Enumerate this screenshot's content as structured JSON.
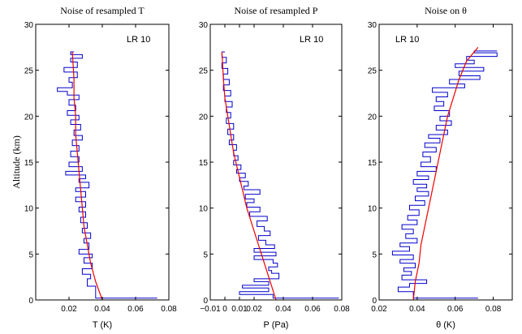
{
  "figure": {
    "y_axis_label": "Altitude (km)"
  },
  "chart_data": [
    {
      "type": "line",
      "title": "Noise of resampled T",
      "xlabel": "T (K)",
      "ylabel": "Altitude (km)",
      "annotation": "LR 10",
      "xlim": [
        0,
        0.08
      ],
      "ylim": [
        0,
        30
      ],
      "xticks": [
        0.02,
        0.04,
        0.06,
        0.08
      ],
      "xtick_labels": [
        "0.02",
        "0.04",
        "0.06",
        "0.08"
      ],
      "yticks": [
        0,
        5,
        10,
        15,
        20,
        25,
        30
      ],
      "ytick_labels": [
        "0",
        "5",
        "10",
        "15",
        "20",
        "25",
        "30"
      ],
      "series": [
        {
          "color": "#0000cc",
          "style": "step",
          "values": [
            [
              0.073,
              0.2
            ],
            [
              0.036,
              0.2
            ],
            [
              0.036,
              0.8
            ],
            [
              0.036,
              1.2
            ],
            [
              0.031,
              1.5
            ],
            [
              0.031,
              1.9
            ],
            [
              0.033,
              2.3
            ],
            [
              0.028,
              2.8
            ],
            [
              0.034,
              3.4
            ],
            [
              0.029,
              4.0
            ],
            [
              0.034,
              4.6
            ],
            [
              0.026,
              5.0
            ],
            [
              0.032,
              5.5
            ],
            [
              0.029,
              6.2
            ],
            [
              0.033,
              6.7
            ],
            [
              0.028,
              7.3
            ],
            [
              0.031,
              7.8
            ],
            [
              0.027,
              8.4
            ],
            [
              0.03,
              9.0
            ],
            [
              0.026,
              9.6
            ],
            [
              0.03,
              10.1
            ],
            [
              0.024,
              10.7
            ],
            [
              0.03,
              11.2
            ],
            [
              0.024,
              11.8
            ],
            [
              0.032,
              12.2
            ],
            [
              0.026,
              12.8
            ],
            [
              0.03,
              13.2
            ],
            [
              0.018,
              13.6
            ],
            [
              0.028,
              14.0
            ],
            [
              0.02,
              14.5
            ],
            [
              0.026,
              15.0
            ],
            [
              0.021,
              15.6
            ],
            [
              0.026,
              16.2
            ],
            [
              0.022,
              16.8
            ],
            [
              0.028,
              17.4
            ],
            [
              0.023,
              17.9
            ],
            [
              0.027,
              18.5
            ],
            [
              0.021,
              19.1
            ],
            [
              0.026,
              19.6
            ],
            [
              0.019,
              20.1
            ],
            [
              0.024,
              20.6
            ],
            [
              0.02,
              21.2
            ],
            [
              0.026,
              21.8
            ],
            [
              0.019,
              22.3
            ],
            [
              0.013,
              22.7
            ],
            [
              0.022,
              23.1
            ],
            [
              0.02,
              23.7
            ],
            [
              0.025,
              24.2
            ],
            [
              0.017,
              24.8
            ],
            [
              0.025,
              25.3
            ],
            [
              0.021,
              25.9
            ],
            [
              0.028,
              26.3
            ],
            [
              0.021,
              26.7
            ],
            [
              0.023,
              27.0
            ]
          ]
        },
        {
          "color": "#ee0000",
          "style": "line",
          "values": [
            [
              0.04,
              0
            ],
            [
              0.036,
              2
            ],
            [
              0.033,
              4
            ],
            [
              0.031,
              6
            ],
            [
              0.029,
              8
            ],
            [
              0.028,
              10
            ],
            [
              0.027,
              12
            ],
            [
              0.026,
              14
            ],
            [
              0.025,
              16
            ],
            [
              0.024,
              18
            ],
            [
              0.024,
              20
            ],
            [
              0.023,
              22
            ],
            [
              0.023,
              24
            ],
            [
              0.022,
              27
            ]
          ]
        }
      ]
    },
    {
      "type": "line",
      "title": "Noise of resampled P",
      "xlabel": "P (Pa)",
      "ylabel": "",
      "annotation": "LR 10",
      "xlim": [
        -0.01,
        0.08
      ],
      "ylim": [
        0,
        30
      ],
      "xticks": [
        -0.01,
        0,
        0.01,
        0.02,
        0.04,
        0.06,
        0.08
      ],
      "xtick_labels": [
        "−0.01",
        "0",
        "0.01",
        "0.02",
        "0.04",
        "0.06",
        "0.08"
      ],
      "yticks": [
        0,
        5,
        10,
        15,
        20,
        25,
        30
      ],
      "ytick_labels": [
        "0",
        "5",
        "10",
        "15",
        "20",
        "25",
        "30"
      ],
      "series": [
        {
          "color": "#0000cc",
          "style": "step",
          "values": [
            [
              0.078,
              0.2
            ],
            [
              0.033,
              0.2
            ],
            [
              0.01,
              0.6
            ],
            [
              0.03,
              0.9
            ],
            [
              0.012,
              1.3
            ],
            [
              0.03,
              1.6
            ],
            [
              0.02,
              2.0
            ],
            [
              0.037,
              2.3
            ],
            [
              0.032,
              2.9
            ],
            [
              0.03,
              3.2
            ],
            [
              0.036,
              3.6
            ],
            [
              0.033,
              4.0
            ],
            [
              0.02,
              4.4
            ],
            [
              0.035,
              4.8
            ],
            [
              0.02,
              5.2
            ],
            [
              0.034,
              5.6
            ],
            [
              0.028,
              6.0
            ],
            [
              0.023,
              6.5
            ],
            [
              0.031,
              7.0
            ],
            [
              0.027,
              7.5
            ],
            [
              0.022,
              8.0
            ],
            [
              0.029,
              8.6
            ],
            [
              0.017,
              9.1
            ],
            [
              0.024,
              9.6
            ],
            [
              0.015,
              10.1
            ],
            [
              0.02,
              10.6
            ],
            [
              0.014,
              11.0
            ],
            [
              0.024,
              11.5
            ],
            [
              0.013,
              12.0
            ],
            [
              0.016,
              12.4
            ],
            [
              0.01,
              12.9
            ],
            [
              0.014,
              13.3
            ],
            [
              0.008,
              13.8
            ],
            [
              0.011,
              14.2
            ],
            [
              0.006,
              14.7
            ],
            [
              0.009,
              15.2
            ],
            [
              0.006,
              15.7
            ],
            [
              0.008,
              16.3
            ],
            [
              0.003,
              16.9
            ],
            [
              0.006,
              17.4
            ],
            [
              0.002,
              18.0
            ],
            [
              0.006,
              18.6
            ],
            [
              0.001,
              19.2
            ],
            [
              0.004,
              19.8
            ],
            [
              0.001,
              20.4
            ],
            [
              0.005,
              21.0
            ],
            [
              0.0,
              21.6
            ],
            [
              0.004,
              22.2
            ],
            [
              -0.001,
              22.8
            ],
            [
              0.003,
              23.4
            ],
            [
              -0.001,
              24.0
            ],
            [
              0.002,
              24.6
            ],
            [
              -0.002,
              25.2
            ],
            [
              0.001,
              25.8
            ],
            [
              -0.002,
              26.4
            ],
            [
              0.0,
              27.0
            ]
          ]
        },
        {
          "color": "#ee0000",
          "style": "line",
          "values": [
            [
              0.035,
              0
            ],
            [
              0.031,
              2
            ],
            [
              0.027,
              4
            ],
            [
              0.023,
              6
            ],
            [
              0.019,
              8
            ],
            [
              0.015,
              10
            ],
            [
              0.012,
              12
            ],
            [
              0.009,
              14
            ],
            [
              0.006,
              16
            ],
            [
              0.004,
              18
            ],
            [
              0.002,
              20
            ],
            [
              0.0,
              22
            ],
            [
              -0.001,
              24
            ],
            [
              -0.002,
              27
            ]
          ]
        }
      ]
    },
    {
      "type": "line",
      "title": "Noise on θ",
      "xlabel": "θ (K)",
      "ylabel": "",
      "annotation": "LR 10",
      "xlim": [
        0.02,
        0.09
      ],
      "ylim": [
        0,
        30
      ],
      "xticks": [
        0.02,
        0.04,
        0.06,
        0.08
      ],
      "xtick_labels": [
        "0.02",
        "0.04",
        "0.06",
        "0.08"
      ],
      "yticks": [
        0,
        5,
        10,
        15,
        20,
        25,
        30
      ],
      "ytick_labels": [
        "0",
        "5",
        "10",
        "15",
        "20",
        "25",
        "30"
      ],
      "series": [
        {
          "color": "#0000cc",
          "style": "step",
          "values": [
            [
              0.072,
              0.2
            ],
            [
              0.038,
              0.2
            ],
            [
              0.03,
              0.9
            ],
            [
              0.036,
              1.4
            ],
            [
              0.045,
              1.8
            ],
            [
              0.032,
              2.2
            ],
            [
              0.037,
              2.7
            ],
            [
              0.033,
              3.1
            ],
            [
              0.039,
              3.5
            ],
            [
              0.031,
              4.0
            ],
            [
              0.038,
              4.4
            ],
            [
              0.027,
              4.9
            ],
            [
              0.036,
              5.3
            ],
            [
              0.031,
              5.8
            ],
            [
              0.04,
              6.2
            ],
            [
              0.034,
              6.7
            ],
            [
              0.038,
              7.2
            ],
            [
              0.032,
              7.7
            ],
            [
              0.04,
              8.2
            ],
            [
              0.035,
              8.7
            ],
            [
              0.041,
              9.2
            ],
            [
              0.036,
              9.8
            ],
            [
              0.044,
              10.3
            ],
            [
              0.039,
              10.8
            ],
            [
              0.046,
              11.3
            ],
            [
              0.04,
              11.8
            ],
            [
              0.045,
              12.2
            ],
            [
              0.038,
              12.6
            ],
            [
              0.046,
              13.1
            ],
            [
              0.04,
              13.5
            ],
            [
              0.05,
              14.0
            ],
            [
              0.042,
              14.5
            ],
            [
              0.047,
              15.0
            ],
            [
              0.043,
              15.6
            ],
            [
              0.05,
              16.1
            ],
            [
              0.044,
              16.6
            ],
            [
              0.052,
              17.1
            ],
            [
              0.046,
              17.6
            ],
            [
              0.056,
              18.0
            ],
            [
              0.05,
              18.5
            ],
            [
              0.058,
              19.0
            ],
            [
              0.052,
              19.5
            ],
            [
              0.057,
              20.0
            ],
            [
              0.049,
              20.6
            ],
            [
              0.054,
              21.1
            ],
            [
              0.05,
              21.6
            ],
            [
              0.056,
              22.1
            ],
            [
              0.048,
              22.6
            ],
            [
              0.065,
              23.1
            ],
            [
              0.057,
              23.5
            ],
            [
              0.073,
              24.0
            ],
            [
              0.062,
              24.4
            ],
            [
              0.075,
              24.9
            ],
            [
              0.06,
              25.3
            ],
            [
              0.07,
              25.7
            ],
            [
              0.066,
              26.1
            ],
            [
              0.082,
              26.5
            ],
            [
              0.07,
              26.9
            ],
            [
              0.082,
              27.1
            ]
          ]
        },
        {
          "color": "#ee0000",
          "style": "line",
          "values": [
            [
              0.038,
              0
            ],
            [
              0.039,
              2
            ],
            [
              0.041,
              4
            ],
            [
              0.042,
              6
            ],
            [
              0.044,
              8
            ],
            [
              0.046,
              10
            ],
            [
              0.048,
              12
            ],
            [
              0.05,
              14
            ],
            [
              0.052,
              16
            ],
            [
              0.054,
              18
            ],
            [
              0.056,
              20
            ],
            [
              0.059,
              22
            ],
            [
              0.062,
              24
            ],
            [
              0.066,
              26
            ],
            [
              0.072,
              27.5
            ]
          ]
        }
      ]
    }
  ]
}
